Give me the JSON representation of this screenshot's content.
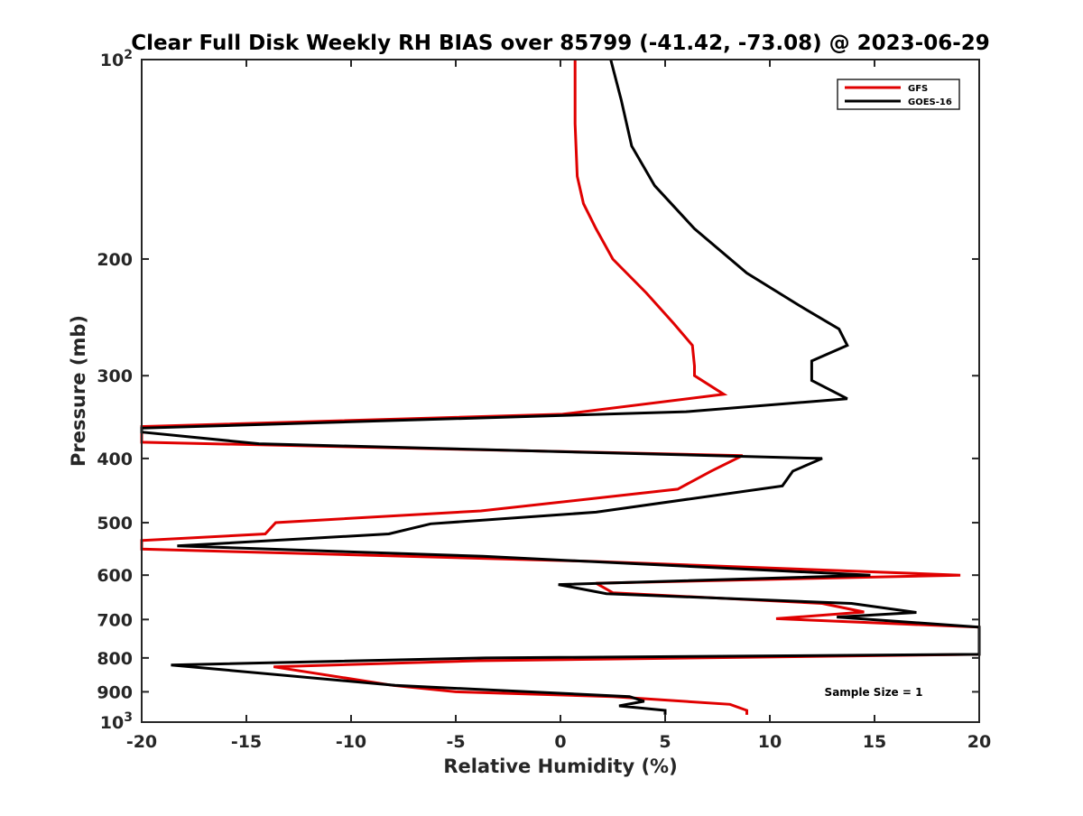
{
  "chart_data": {
    "type": "line",
    "title": "Clear Full Disk Weekly RH BIAS over 85799 (-41.42, -73.08) @ 2023-06-29",
    "xlabel": "Relative Humidity (%)",
    "ylabel": "Pressure (mb)",
    "xlim": [
      -20,
      20
    ],
    "ylim": [
      100,
      1000
    ],
    "y_scale": "log",
    "y_reversed": true,
    "grid": false,
    "legend_position": "top-right",
    "x_ticks": [
      {
        "value": -20,
        "label": "-20"
      },
      {
        "value": -15,
        "label": "-15"
      },
      {
        "value": -10,
        "label": "-10"
      },
      {
        "value": -5,
        "label": "-5"
      },
      {
        "value": 0,
        "label": "0"
      },
      {
        "value": 5,
        "label": "5"
      },
      {
        "value": 10,
        "label": "10"
      },
      {
        "value": 15,
        "label": "15"
      },
      {
        "value": 20,
        "label": "20"
      }
    ],
    "y_ticks": [
      {
        "value": 100,
        "label": "10",
        "sup": "2"
      },
      {
        "value": 200,
        "label": "200",
        "sup": ""
      },
      {
        "value": 300,
        "label": "300",
        "sup": ""
      },
      {
        "value": 400,
        "label": "400",
        "sup": ""
      },
      {
        "value": 500,
        "label": "500",
        "sup": ""
      },
      {
        "value": 600,
        "label": "600",
        "sup": ""
      },
      {
        "value": 700,
        "label": "700",
        "sup": ""
      },
      {
        "value": 800,
        "label": "800",
        "sup": ""
      },
      {
        "value": 900,
        "label": "900",
        "sup": ""
      },
      {
        "value": 1000,
        "label": "10",
        "sup": "3"
      }
    ],
    "series": [
      {
        "name": "GFS",
        "color": "#e00000",
        "points": [
          [
            0.7,
            100
          ],
          [
            0.7,
            125
          ],
          [
            0.8,
            150
          ],
          [
            1.1,
            165
          ],
          [
            1.7,
            180
          ],
          [
            2.5,
            200
          ],
          [
            4.1,
            225
          ],
          [
            5.4,
            250
          ],
          [
            6.3,
            270
          ],
          [
            6.4,
            290
          ],
          [
            6.4,
            300
          ],
          [
            7.8,
            320
          ],
          [
            0.1,
            343
          ],
          [
            -20,
            358
          ],
          [
            -20,
            378
          ],
          [
            8.7,
            396
          ],
          [
            7.2,
            418
          ],
          [
            5.6,
            445
          ],
          [
            -3.8,
            480
          ],
          [
            -13.6,
            500
          ],
          [
            -14.1,
            520
          ],
          [
            -20,
            532
          ],
          [
            -20,
            548
          ],
          [
            1.5,
            572
          ],
          [
            19.1,
            600
          ],
          [
            1.7,
            617
          ],
          [
            2.5,
            638
          ],
          [
            12.5,
            662
          ],
          [
            14.5,
            682
          ],
          [
            10.3,
            698
          ],
          [
            20,
            719
          ],
          [
            20,
            790
          ],
          [
            -3.9,
            808
          ],
          [
            -13.7,
            825
          ],
          [
            -8.0,
            880
          ],
          [
            -5.0,
            900
          ],
          [
            2.5,
            915
          ],
          [
            8.1,
            940
          ],
          [
            8.9,
            960
          ],
          [
            8.9,
            975
          ]
        ]
      },
      {
        "name": "GOES-16",
        "color": "#000000",
        "points": [
          [
            2.4,
            100
          ],
          [
            2.9,
            115
          ],
          [
            3.4,
            135
          ],
          [
            4.5,
            155
          ],
          [
            6.4,
            180
          ],
          [
            8.9,
            210
          ],
          [
            11.4,
            235
          ],
          [
            13.3,
            255
          ],
          [
            13.7,
            270
          ],
          [
            12.0,
            285
          ],
          [
            12.0,
            305
          ],
          [
            13.7,
            325
          ],
          [
            6.0,
            340
          ],
          [
            -20,
            360
          ],
          [
            -20,
            365
          ],
          [
            -14.4,
            380
          ],
          [
            12.5,
            400
          ],
          [
            11.1,
            418
          ],
          [
            10.6,
            440
          ],
          [
            1.7,
            482
          ],
          [
            -6.2,
            502
          ],
          [
            -8.2,
            520
          ],
          [
            -18.3,
            542
          ],
          [
            -3.7,
            562
          ],
          [
            14.8,
            600
          ],
          [
            -0.1,
            620
          ],
          [
            2.2,
            640
          ],
          [
            13.9,
            662
          ],
          [
            17.0,
            683
          ],
          [
            13.2,
            694
          ],
          [
            20,
            719
          ],
          [
            20,
            790
          ],
          [
            -3.6,
            800
          ],
          [
            -18.6,
            820
          ],
          [
            -7.9,
            880
          ],
          [
            3.3,
            915
          ],
          [
            4.0,
            930
          ],
          [
            2.8,
            945
          ],
          [
            5.0,
            960
          ],
          [
            5.0,
            975
          ]
        ]
      }
    ],
    "annotation": "Sample Size = 1"
  }
}
